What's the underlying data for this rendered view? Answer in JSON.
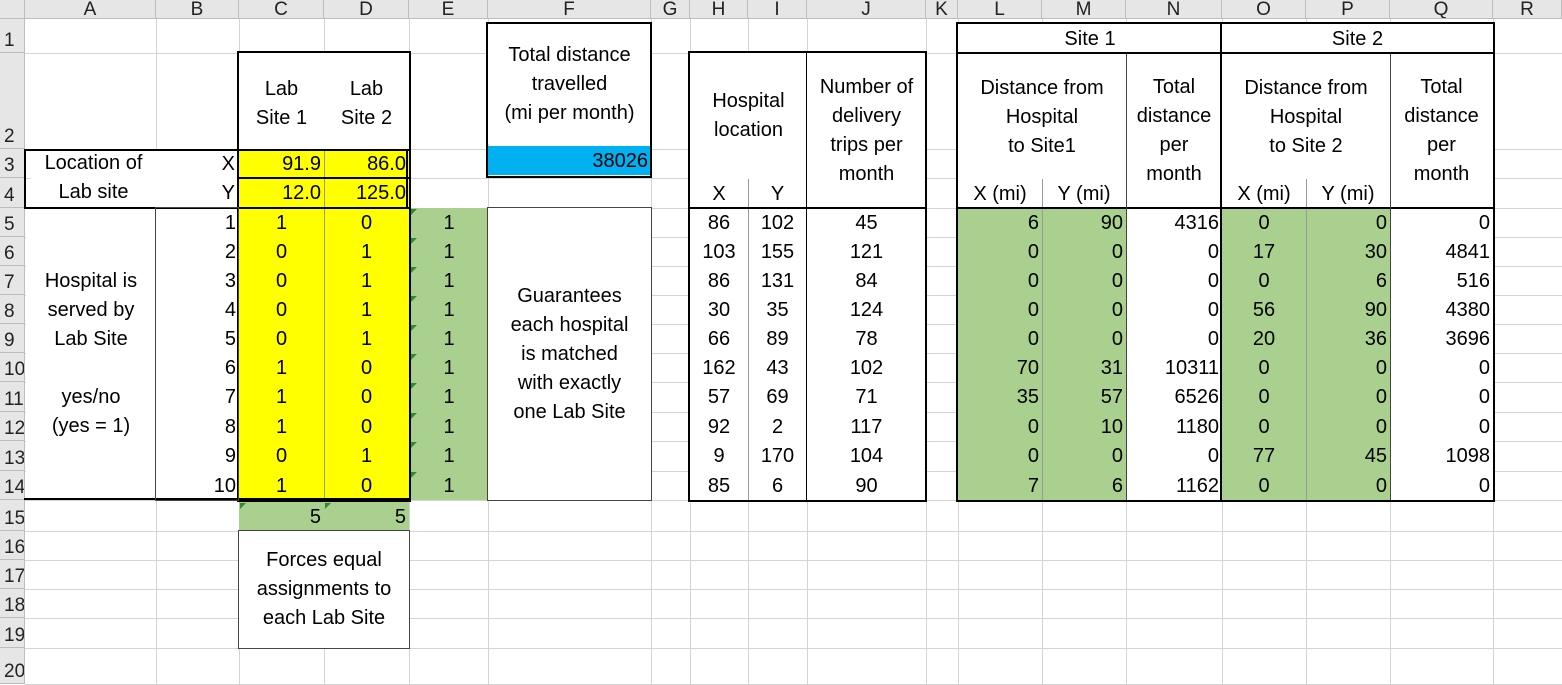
{
  "columns": [
    "A",
    "B",
    "C",
    "D",
    "E",
    "F",
    "G",
    "H",
    "I",
    "J",
    "K",
    "L",
    "M",
    "N",
    "O",
    "P",
    "Q",
    "R"
  ],
  "rows": [
    "1",
    "2",
    "3",
    "4",
    "5",
    "6",
    "7",
    "8",
    "9",
    "10",
    "11",
    "12",
    "13",
    "14",
    "15",
    "16",
    "17",
    "18",
    "19",
    "20"
  ],
  "colors": {
    "yellow": "#ffff00",
    "green": "#a9d08e",
    "blue": "#00b0f0"
  },
  "headers": {
    "lab_site_1": "Lab\nSite 1",
    "lab_site_2": "Lab\nSite 2",
    "total_distance": "Total distance\ntravelled\n(mi per month)",
    "hospital_location": "Hospital\nlocation",
    "x": "X",
    "y": "Y",
    "delivery_trips": "Number of\ndelivery\ntrips per\nmonth",
    "site1": "Site 1",
    "site2": "Site 2",
    "dist_site1": "Distance from\nHospital\nto Site1",
    "dist_site2": "Distance from\nHospital\nto Site 2",
    "total_per_month": "Total\ndistance\nper\nmonth",
    "x_mi": "X (mi)",
    "y_mi": "Y (mi)"
  },
  "location": {
    "label": "Location of\nLab site",
    "x_label": "X",
    "y_label": "Y",
    "site1_x": "91.9",
    "site2_x": "86.0",
    "site1_y": "12.0",
    "site2_y": "125.0"
  },
  "total_value": "38026",
  "served_label": "Hospital is\nserved by\nLab Site\n\nyes/no\n(yes = 1)",
  "guarantee_note": "Guarantees\neach hospital\nis matched\nwith exactly\none Lab Site",
  "forces_note": "Forces equal\nassignments to\neach Lab Site",
  "col_sums": [
    "5",
    "5"
  ],
  "hospitals": [
    {
      "n": "1",
      "s1": "1",
      "s2": "0",
      "e": "1",
      "x": "86",
      "y": "102",
      "trips": "45",
      "d1x": "6",
      "d1y": "90",
      "t1": "4316",
      "d2x": "0",
      "d2y": "0",
      "t2": "0"
    },
    {
      "n": "2",
      "s1": "0",
      "s2": "1",
      "e": "1",
      "x": "103",
      "y": "155",
      "trips": "121",
      "d1x": "0",
      "d1y": "0",
      "t1": "0",
      "d2x": "17",
      "d2y": "30",
      "t2": "4841"
    },
    {
      "n": "3",
      "s1": "0",
      "s2": "1",
      "e": "1",
      "x": "86",
      "y": "131",
      "trips": "84",
      "d1x": "0",
      "d1y": "0",
      "t1": "0",
      "d2x": "0",
      "d2y": "6",
      "t2": "516"
    },
    {
      "n": "4",
      "s1": "0",
      "s2": "1",
      "e": "1",
      "x": "30",
      "y": "35",
      "trips": "124",
      "d1x": "0",
      "d1y": "0",
      "t1": "0",
      "d2x": "56",
      "d2y": "90",
      "t2": "4380"
    },
    {
      "n": "5",
      "s1": "0",
      "s2": "1",
      "e": "1",
      "x": "66",
      "y": "89",
      "trips": "78",
      "d1x": "0",
      "d1y": "0",
      "t1": "0",
      "d2x": "20",
      "d2y": "36",
      "t2": "3696"
    },
    {
      "n": "6",
      "s1": "1",
      "s2": "0",
      "e": "1",
      "x": "162",
      "y": "43",
      "trips": "102",
      "d1x": "70",
      "d1y": "31",
      "t1": "10311",
      "d2x": "0",
      "d2y": "0",
      "t2": "0"
    },
    {
      "n": "7",
      "s1": "1",
      "s2": "0",
      "e": "1",
      "x": "57",
      "y": "69",
      "trips": "71",
      "d1x": "35",
      "d1y": "57",
      "t1": "6526",
      "d2x": "0",
      "d2y": "0",
      "t2": "0"
    },
    {
      "n": "8",
      "s1": "1",
      "s2": "0",
      "e": "1",
      "x": "92",
      "y": "2",
      "trips": "117",
      "d1x": "0",
      "d1y": "10",
      "t1": "1180",
      "d2x": "0",
      "d2y": "0",
      "t2": "0"
    },
    {
      "n": "9",
      "s1": "0",
      "s2": "1",
      "e": "1",
      "x": "9",
      "y": "170",
      "trips": "104",
      "d1x": "0",
      "d1y": "0",
      "t1": "0",
      "d2x": "77",
      "d2y": "45",
      "t2": "1098"
    },
    {
      "n": "10",
      "s1": "1",
      "s2": "0",
      "e": "1",
      "x": "85",
      "y": "6",
      "trips": "90",
      "d1x": "7",
      "d1y": "6",
      "t1": "1162",
      "d2x": "0",
      "d2y": "0",
      "t2": "0"
    }
  ]
}
